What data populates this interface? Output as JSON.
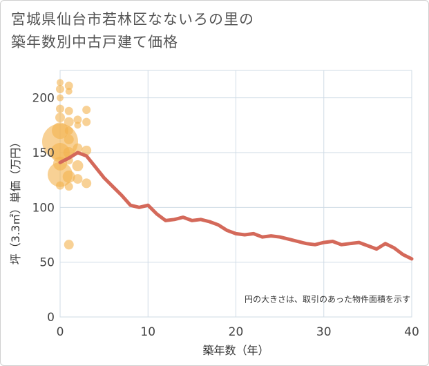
{
  "title": "宮城県仙台市若林区なないろの里の\n築年数別中古戸建て価格",
  "chart_data": {
    "type": "scatter",
    "xlabel": "築年数（年）",
    "ylabel": "坪（3.3㎡）単価（万円）",
    "xlim": [
      0,
      40
    ],
    "ylim": [
      0,
      225
    ],
    "x_ticks": [
      0,
      10,
      20,
      30,
      40
    ],
    "y_ticks": [
      0,
      50,
      100,
      150,
      200
    ],
    "grid": true,
    "note": "円の大きさは、取引のあった物件面積を示す",
    "colors": {
      "bubble": "#f3b24f",
      "line": "#d4695a",
      "grid": "#cfdbe6"
    },
    "bubbles": [
      {
        "x": 0,
        "y": 214,
        "r": 5
      },
      {
        "x": 0,
        "y": 208,
        "r": 6
      },
      {
        "x": 0,
        "y": 200,
        "r": 5
      },
      {
        "x": 0,
        "y": 190,
        "r": 6
      },
      {
        "x": 0,
        "y": 182,
        "r": 7
      },
      {
        "x": 0,
        "y": 170,
        "r": 12
      },
      {
        "x": 0,
        "y": 160,
        "r": 26
      },
      {
        "x": 0,
        "y": 150,
        "r": 14
      },
      {
        "x": 0,
        "y": 140,
        "r": 10
      },
      {
        "x": 0,
        "y": 130,
        "r": 18
      },
      {
        "x": 0,
        "y": 120,
        "r": 6
      },
      {
        "x": 1,
        "y": 211,
        "r": 6
      },
      {
        "x": 1,
        "y": 206,
        "r": 5
      },
      {
        "x": 1,
        "y": 188,
        "r": 6
      },
      {
        "x": 1,
        "y": 178,
        "r": 7
      },
      {
        "x": 1,
        "y": 170,
        "r": 6
      },
      {
        "x": 1,
        "y": 162,
        "r": 7
      },
      {
        "x": 1,
        "y": 150,
        "r": 8
      },
      {
        "x": 1,
        "y": 143,
        "r": 6
      },
      {
        "x": 1,
        "y": 128,
        "r": 9
      },
      {
        "x": 1,
        "y": 119,
        "r": 6
      },
      {
        "x": 1,
        "y": 66,
        "r": 7
      },
      {
        "x": 2,
        "y": 180,
        "r": 6
      },
      {
        "x": 2,
        "y": 175,
        "r": 5
      },
      {
        "x": 2,
        "y": 154,
        "r": 7
      },
      {
        "x": 2,
        "y": 138,
        "r": 8
      },
      {
        "x": 2,
        "y": 126,
        "r": 7
      },
      {
        "x": 3,
        "y": 189,
        "r": 6
      },
      {
        "x": 3,
        "y": 178,
        "r": 6
      },
      {
        "x": 3,
        "y": 152,
        "r": 7
      },
      {
        "x": 3,
        "y": 122,
        "r": 7
      }
    ],
    "series": [
      {
        "x": [
          0,
          1,
          2,
          3,
          4,
          5,
          6,
          7,
          8,
          9,
          10,
          11,
          12,
          13,
          14,
          15,
          16,
          17,
          18,
          19,
          20,
          21,
          22,
          23,
          24,
          25,
          26,
          27,
          28,
          29,
          30,
          31,
          32,
          33,
          34,
          35,
          36,
          37,
          38,
          39,
          40
        ],
        "y": [
          141,
          145,
          150,
          147,
          137,
          127,
          119,
          111,
          102,
          100,
          102,
          94,
          88,
          89,
          91,
          88,
          89,
          87,
          84,
          79,
          76,
          75,
          76,
          73,
          74,
          73,
          71,
          69,
          67,
          66,
          68,
          69,
          66,
          67,
          68,
          65,
          62,
          67,
          63,
          57,
          53
        ]
      }
    ]
  }
}
